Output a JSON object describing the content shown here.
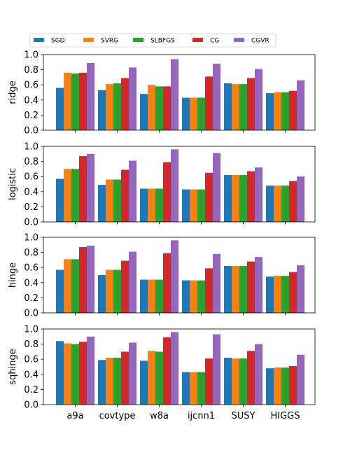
{
  "chart_data": {
    "type": "bar",
    "categories": [
      "a9a",
      "covtype",
      "w8a",
      "ijcnn1",
      "SUSY",
      "HIGGS"
    ],
    "legend": {
      "placement": "top, spanning full width above the panels",
      "entries": [
        "SGD",
        "SVRG",
        "SLBFGS",
        "CG",
        "CGVR"
      ]
    },
    "colors": {
      "SGD": "#1f77b4",
      "SVRG": "#ff7f0e",
      "SLBFGS": "#2ca02c",
      "CG": "#d62728",
      "CGVR": "#9467bd"
    },
    "ylim": [
      0,
      1.0
    ],
    "yticks": [
      "0.0",
      "0.2",
      "0.4",
      "0.6",
      "0.8",
      "1.0"
    ],
    "grid": false,
    "panels": [
      {
        "ylabel": "ridge",
        "series": [
          {
            "name": "SGD",
            "values": [
              0.56,
              0.53,
              0.48,
              0.43,
              0.62,
              0.49
            ]
          },
          {
            "name": "SVRG",
            "values": [
              0.76,
              0.61,
              0.6,
              0.43,
              0.61,
              0.5
            ]
          },
          {
            "name": "SLBFGS",
            "values": [
              0.75,
              0.62,
              0.58,
              0.43,
              0.61,
              0.5
            ]
          },
          {
            "name": "CG",
            "values": [
              0.76,
              0.69,
              0.58,
              0.71,
              0.69,
              0.52
            ]
          },
          {
            "name": "CGVR",
            "values": [
              0.89,
              0.83,
              0.94,
              0.88,
              0.81,
              0.66
            ]
          }
        ]
      },
      {
        "ylabel": "logistic",
        "series": [
          {
            "name": "SGD",
            "values": [
              0.57,
              0.49,
              0.44,
              0.43,
              0.62,
              0.48
            ]
          },
          {
            "name": "SVRG",
            "values": [
              0.7,
              0.56,
              0.44,
              0.43,
              0.62,
              0.48
            ]
          },
          {
            "name": "SLBFGS",
            "values": [
              0.7,
              0.56,
              0.44,
              0.43,
              0.62,
              0.48
            ]
          },
          {
            "name": "CG",
            "values": [
              0.87,
              0.69,
              0.79,
              0.65,
              0.67,
              0.54
            ]
          },
          {
            "name": "CGVR",
            "values": [
              0.9,
              0.81,
              0.96,
              0.91,
              0.72,
              0.6
            ]
          }
        ]
      },
      {
        "ylabel": "hinge",
        "series": [
          {
            "name": "SGD",
            "values": [
              0.57,
              0.5,
              0.44,
              0.43,
              0.62,
              0.48
            ]
          },
          {
            "name": "SVRG",
            "values": [
              0.71,
              0.57,
              0.44,
              0.43,
              0.62,
              0.49
            ]
          },
          {
            "name": "SLBFGS",
            "values": [
              0.71,
              0.57,
              0.44,
              0.43,
              0.62,
              0.49
            ]
          },
          {
            "name": "CG",
            "values": [
              0.87,
              0.69,
              0.79,
              0.59,
              0.68,
              0.54
            ]
          },
          {
            "name": "CGVR",
            "values": [
              0.89,
              0.81,
              0.96,
              0.78,
              0.74,
              0.63
            ]
          }
        ]
      },
      {
        "ylabel": "sqhinge",
        "series": [
          {
            "name": "SGD",
            "values": [
              0.84,
              0.59,
              0.58,
              0.43,
              0.62,
              0.48
            ]
          },
          {
            "name": "SVRG",
            "values": [
              0.81,
              0.62,
              0.71,
              0.43,
              0.61,
              0.49
            ]
          },
          {
            "name": "SLBFGS",
            "values": [
              0.8,
              0.62,
              0.7,
              0.43,
              0.61,
              0.49
            ]
          },
          {
            "name": "CG",
            "values": [
              0.83,
              0.7,
              0.89,
              0.61,
              0.71,
              0.51
            ]
          },
          {
            "name": "CGVR",
            "values": [
              0.9,
              0.82,
              0.96,
              0.93,
              0.8,
              0.66
            ]
          }
        ]
      }
    ]
  }
}
